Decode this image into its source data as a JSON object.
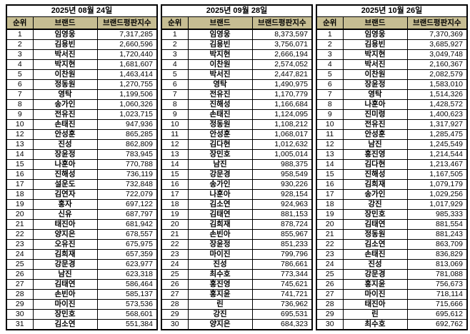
{
  "colors": {
    "header_bg": "#c6bd92",
    "border": "#000000",
    "background": "#ffffff",
    "text": "#000000"
  },
  "columns": {
    "rank": "순위",
    "brand": "브랜드",
    "index": "브랜드평판지수"
  },
  "tables": [
    {
      "date": "2025년 08월 24일",
      "rows": [
        {
          "rank": "1",
          "brand": "임영웅",
          "index": "7,317,285"
        },
        {
          "rank": "2",
          "brand": "김용빈",
          "index": "2,660,596"
        },
        {
          "rank": "3",
          "brand": "박서진",
          "index": "1,720,440"
        },
        {
          "rank": "4",
          "brand": "박지현",
          "index": "1,681,607"
        },
        {
          "rank": "5",
          "brand": "이찬원",
          "index": "1,463,414"
        },
        {
          "rank": "6",
          "brand": "정동원",
          "index": "1,270,755"
        },
        {
          "rank": "7",
          "brand": "영탁",
          "index": "1,199,506"
        },
        {
          "rank": "8",
          "brand": "송가인",
          "index": "1,060,326"
        },
        {
          "rank": "9",
          "brand": "전유진",
          "index": "1,023,715"
        },
        {
          "rank": "10",
          "brand": "손태진",
          "index": "947,936"
        },
        {
          "rank": "12",
          "brand": "안성훈",
          "index": "865,285"
        },
        {
          "rank": "13",
          "brand": "진성",
          "index": "862,809"
        },
        {
          "rank": "14",
          "brand": "장윤정",
          "index": "783,945"
        },
        {
          "rank": "15",
          "brand": "나훈아",
          "index": "770,788"
        },
        {
          "rank": "16",
          "brand": "진해성",
          "index": "736,119"
        },
        {
          "rank": "17",
          "brand": "설운도",
          "index": "732,848"
        },
        {
          "rank": "18",
          "brand": "김연자",
          "index": "722,079"
        },
        {
          "rank": "19",
          "brand": "홍자",
          "index": "697,122"
        },
        {
          "rank": "20",
          "brand": "신유",
          "index": "687,797"
        },
        {
          "rank": "21",
          "brand": "태진아",
          "index": "681,942"
        },
        {
          "rank": "22",
          "brand": "양지은",
          "index": "678,557"
        },
        {
          "rank": "23",
          "brand": "오유진",
          "index": "675,975"
        },
        {
          "rank": "24",
          "brand": "김희재",
          "index": "657,359"
        },
        {
          "rank": "25",
          "brand": "강문경",
          "index": "623,977"
        },
        {
          "rank": "26",
          "brand": "남진",
          "index": "623,318"
        },
        {
          "rank": "27",
          "brand": "김태연",
          "index": "586,464"
        },
        {
          "rank": "28",
          "brand": "손빈아",
          "index": "585,137"
        },
        {
          "rank": "29",
          "brand": "마이진",
          "index": "573,536"
        },
        {
          "rank": "30",
          "brand": "장민호",
          "index": "568,601"
        },
        {
          "rank": "31",
          "brand": "김소연",
          "index": "551,384"
        }
      ]
    },
    {
      "date": "2025년 09월 28일",
      "rows": [
        {
          "rank": "1",
          "brand": "임영웅",
          "index": "8,373,597"
        },
        {
          "rank": "2",
          "brand": "김용빈",
          "index": "3,756,071"
        },
        {
          "rank": "3",
          "brand": "박지현",
          "index": "2,666,194"
        },
        {
          "rank": "4",
          "brand": "이찬원",
          "index": "2,574,052"
        },
        {
          "rank": "5",
          "brand": "박서진",
          "index": "2,447,821"
        },
        {
          "rank": "6",
          "brand": "영탁",
          "index": "1,490,975"
        },
        {
          "rank": "7",
          "brand": "전유진",
          "index": "1,170,779"
        },
        {
          "rank": "8",
          "brand": "진해성",
          "index": "1,166,684"
        },
        {
          "rank": "9",
          "brand": "손태진",
          "index": "1,124,095"
        },
        {
          "rank": "10",
          "brand": "정동원",
          "index": "1,108,212"
        },
        {
          "rank": "11",
          "brand": "안성훈",
          "index": "1,068,017"
        },
        {
          "rank": "12",
          "brand": "김다현",
          "index": "1,012,632"
        },
        {
          "rank": "13",
          "brand": "장민호",
          "index": "1,005,014"
        },
        {
          "rank": "14",
          "brand": "남진",
          "index": "988,375"
        },
        {
          "rank": "15",
          "brand": "강문경",
          "index": "958,549"
        },
        {
          "rank": "16",
          "brand": "송가인",
          "index": "930,226"
        },
        {
          "rank": "17",
          "brand": "나훈아",
          "index": "928,154"
        },
        {
          "rank": "18",
          "brand": "김소연",
          "index": "924,963"
        },
        {
          "rank": "19",
          "brand": "김태연",
          "index": "881,153"
        },
        {
          "rank": "20",
          "brand": "김희재",
          "index": "878,724"
        },
        {
          "rank": "21",
          "brand": "손빈아",
          "index": "855,967"
        },
        {
          "rank": "22",
          "brand": "장윤정",
          "index": "851,233"
        },
        {
          "rank": "23",
          "brand": "마이진",
          "index": "799,796"
        },
        {
          "rank": "24",
          "brand": "진성",
          "index": "786,661"
        },
        {
          "rank": "25",
          "brand": "최수호",
          "index": "773,344"
        },
        {
          "rank": "26",
          "brand": "홍진영",
          "index": "745,621"
        },
        {
          "rank": "27",
          "brand": "홍지윤",
          "index": "741,721"
        },
        {
          "rank": "28",
          "brand": "린",
          "index": "736,962"
        },
        {
          "rank": "29",
          "brand": "강진",
          "index": "695,531"
        },
        {
          "rank": "30",
          "brand": "양지은",
          "index": "684,323"
        }
      ]
    },
    {
      "date": "2025년 10월 26일",
      "rows": [
        {
          "rank": "1",
          "brand": "임영웅",
          "index": "7,370,369"
        },
        {
          "rank": "2",
          "brand": "김용빈",
          "index": "3,685,927"
        },
        {
          "rank": "3",
          "brand": "박지현",
          "index": "3,049,748"
        },
        {
          "rank": "4",
          "brand": "박서진",
          "index": "2,160,367"
        },
        {
          "rank": "5",
          "brand": "이찬원",
          "index": "2,082,579"
        },
        {
          "rank": "6",
          "brand": "장윤정",
          "index": "1,583,010"
        },
        {
          "rank": "7",
          "brand": "영탁",
          "index": "1,514,326"
        },
        {
          "rank": "8",
          "brand": "나훈아",
          "index": "1,428,572"
        },
        {
          "rank": "9",
          "brand": "진미령",
          "index": "1,400,623"
        },
        {
          "rank": "10",
          "brand": "전유진",
          "index": "1,317,927"
        },
        {
          "rank": "11",
          "brand": "안성훈",
          "index": "1,285,475"
        },
        {
          "rank": "12",
          "brand": "남진",
          "index": "1,245,549"
        },
        {
          "rank": "13",
          "brand": "홍진영",
          "index": "1,214,544"
        },
        {
          "rank": "14",
          "brand": "김다현",
          "index": "1,213,467"
        },
        {
          "rank": "15",
          "brand": "진해성",
          "index": "1,167,505"
        },
        {
          "rank": "16",
          "brand": "김희재",
          "index": "1,079,179"
        },
        {
          "rank": "17",
          "brand": "송가인",
          "index": "1,029,256"
        },
        {
          "rank": "18",
          "brand": "강진",
          "index": "1,017,929"
        },
        {
          "rank": "19",
          "brand": "장민호",
          "index": "985,333"
        },
        {
          "rank": "20",
          "brand": "김태연",
          "index": "881,554"
        },
        {
          "rank": "21",
          "brand": "정동원",
          "index": "881,243"
        },
        {
          "rank": "22",
          "brand": "김소연",
          "index": "863,709"
        },
        {
          "rank": "23",
          "brand": "손태진",
          "index": "836,829"
        },
        {
          "rank": "24",
          "brand": "진성",
          "index": "813,069"
        },
        {
          "rank": "25",
          "brand": "강문경",
          "index": "781,088"
        },
        {
          "rank": "26",
          "brand": "홍지윤",
          "index": "756,673"
        },
        {
          "rank": "27",
          "brand": "마이진",
          "index": "718,114"
        },
        {
          "rank": "28",
          "brand": "태진아",
          "index": "715,666"
        },
        {
          "rank": "29",
          "brand": "린",
          "index": "695,612"
        },
        {
          "rank": "30",
          "brand": "최수호",
          "index": "692,762"
        }
      ]
    }
  ]
}
